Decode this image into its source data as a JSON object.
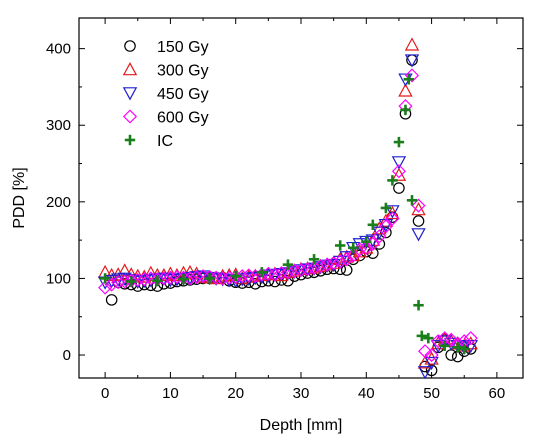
{
  "chart_data": {
    "type": "scatter",
    "title": "",
    "xlabel": "Depth [mm]",
    "ylabel": "PDD [%]",
    "xlim": [
      -4,
      64
    ],
    "ylim": [
      -30,
      440
    ],
    "xticks": [
      0,
      10,
      20,
      30,
      40,
      50,
      60
    ],
    "yticks": [
      0,
      100,
      200,
      300,
      400
    ],
    "grid": false,
    "legend_position": "top-left",
    "series": [
      {
        "name": "150 Gy",
        "marker": "circle",
        "color": "#000000",
        "points": [
          [
            1,
            72
          ],
          [
            2,
            95
          ],
          [
            3,
            93
          ],
          [
            4,
            92
          ],
          [
            5,
            90
          ],
          [
            6,
            92
          ],
          [
            7,
            91
          ],
          [
            8,
            90
          ],
          [
            9,
            93
          ],
          [
            10,
            94
          ],
          [
            11,
            96
          ],
          [
            12,
            97
          ],
          [
            13,
            98
          ],
          [
            14,
            99
          ],
          [
            15,
            100
          ],
          [
            16,
            100
          ],
          [
            17,
            101
          ],
          [
            18,
            101
          ],
          [
            19,
            97
          ],
          [
            20,
            95
          ],
          [
            21,
            94
          ],
          [
            22,
            95
          ],
          [
            23,
            93
          ],
          [
            24,
            96
          ],
          [
            25,
            97
          ],
          [
            26,
            96
          ],
          [
            27,
            98
          ],
          [
            28,
            97
          ],
          [
            29,
            103
          ],
          [
            30,
            105
          ],
          [
            31,
            107
          ],
          [
            32,
            108
          ],
          [
            33,
            110
          ],
          [
            34,
            112
          ],
          [
            35,
            113
          ],
          [
            36,
            112
          ],
          [
            37,
            111
          ],
          [
            38,
            125
          ],
          [
            39,
            130
          ],
          [
            40,
            135
          ],
          [
            41,
            133
          ],
          [
            42,
            145
          ],
          [
            43,
            160
          ],
          [
            44,
            180
          ],
          [
            45,
            218
          ],
          [
            46,
            315
          ],
          [
            47,
            385
          ],
          [
            48,
            175
          ],
          [
            49,
            -15
          ],
          [
            50,
            -20
          ],
          [
            51,
            10
          ],
          [
            52,
            20
          ],
          [
            53,
            0
          ],
          [
            54,
            -2
          ],
          [
            55,
            5
          ],
          [
            56,
            8
          ]
        ]
      },
      {
        "name": "300 Gy",
        "marker": "triangle-up",
        "color": "#e41a1c",
        "points": [
          [
            0,
            108
          ],
          [
            1,
            104
          ],
          [
            2,
            105
          ],
          [
            3,
            110
          ],
          [
            4,
            105
          ],
          [
            5,
            103
          ],
          [
            6,
            102
          ],
          [
            7,
            107
          ],
          [
            8,
            104
          ],
          [
            9,
            104
          ],
          [
            10,
            106
          ],
          [
            11,
            104
          ],
          [
            12,
            107
          ],
          [
            13,
            108
          ],
          [
            14,
            106
          ],
          [
            15,
            102
          ],
          [
            16,
            101
          ],
          [
            17,
            100
          ],
          [
            18,
            103
          ],
          [
            19,
            104
          ],
          [
            20,
            105
          ],
          [
            21,
            100
          ],
          [
            22,
            102
          ],
          [
            23,
            103
          ],
          [
            24,
            104
          ],
          [
            25,
            105
          ],
          [
            26,
            106
          ],
          [
            27,
            104
          ],
          [
            28,
            108
          ],
          [
            29,
            110
          ],
          [
            30,
            112
          ],
          [
            31,
            113
          ],
          [
            32,
            114
          ],
          [
            33,
            116
          ],
          [
            34,
            118
          ],
          [
            35,
            120
          ],
          [
            36,
            125
          ],
          [
            37,
            128
          ],
          [
            38,
            130
          ],
          [
            39,
            135
          ],
          [
            40,
            140
          ],
          [
            41,
            150
          ],
          [
            42,
            165
          ],
          [
            43,
            175
          ],
          [
            44,
            185
          ],
          [
            45,
            235
          ],
          [
            46,
            345
          ],
          [
            47,
            405
          ],
          [
            48,
            190
          ],
          [
            49,
            -10
          ],
          [
            50,
            -5
          ],
          [
            51,
            15
          ],
          [
            52,
            20
          ],
          [
            53,
            18
          ],
          [
            54,
            15
          ],
          [
            55,
            12
          ],
          [
            56,
            15
          ]
        ]
      },
      {
        "name": "450 Gy",
        "marker": "triangle-down",
        "color": "#1f1fd0",
        "points": [
          [
            0,
            95
          ],
          [
            1,
            97
          ],
          [
            2,
            99
          ],
          [
            3,
            100
          ],
          [
            4,
            98
          ],
          [
            5,
            96
          ],
          [
            6,
            97
          ],
          [
            7,
            98
          ],
          [
            8,
            99
          ],
          [
            9,
            100
          ],
          [
            10,
            98
          ],
          [
            11,
            99
          ],
          [
            12,
            100
          ],
          [
            13,
            101
          ],
          [
            14,
            102
          ],
          [
            15,
            103
          ],
          [
            16,
            101
          ],
          [
            17,
            100
          ],
          [
            18,
            99
          ],
          [
            19,
            98
          ],
          [
            20,
            97
          ],
          [
            21,
            99
          ],
          [
            22,
            100
          ],
          [
            23,
            101
          ],
          [
            24,
            102
          ],
          [
            25,
            104
          ],
          [
            26,
            105
          ],
          [
            27,
            106
          ],
          [
            28,
            107
          ],
          [
            29,
            109
          ],
          [
            30,
            111
          ],
          [
            31,
            112
          ],
          [
            32,
            113
          ],
          [
            33,
            115
          ],
          [
            34,
            117
          ],
          [
            35,
            118
          ],
          [
            36,
            122
          ],
          [
            37,
            128
          ],
          [
            38,
            140
          ],
          [
            39,
            145
          ],
          [
            40,
            148
          ],
          [
            41,
            150
          ],
          [
            42,
            160
          ],
          [
            43,
            170
          ],
          [
            44,
            188
          ],
          [
            45,
            252
          ],
          [
            46,
            360
          ],
          [
            47,
            385
          ],
          [
            48,
            158
          ],
          [
            49,
            -22
          ],
          [
            50,
            -10
          ],
          [
            51,
            12
          ],
          [
            52,
            18
          ],
          [
            53,
            15
          ],
          [
            54,
            12
          ],
          [
            55,
            10
          ],
          [
            56,
            12
          ]
        ]
      },
      {
        "name": "600 Gy",
        "marker": "diamond",
        "color": "#ff00ff",
        "points": [
          [
            0,
            88
          ],
          [
            1,
            92
          ],
          [
            2,
            95
          ],
          [
            3,
            96
          ],
          [
            4,
            97
          ],
          [
            5,
            98
          ],
          [
            6,
            99
          ],
          [
            7,
            100
          ],
          [
            8,
            99
          ],
          [
            9,
            100
          ],
          [
            10,
            101
          ],
          [
            11,
            102
          ],
          [
            12,
            101
          ],
          [
            13,
            100
          ],
          [
            14,
            102
          ],
          [
            15,
            103
          ],
          [
            16,
            102
          ],
          [
            17,
            101
          ],
          [
            18,
            100
          ],
          [
            19,
            101
          ],
          [
            20,
            102
          ],
          [
            21,
            103
          ],
          [
            22,
            104
          ],
          [
            23,
            103
          ],
          [
            24,
            105
          ],
          [
            25,
            106
          ],
          [
            26,
            105
          ],
          [
            27,
            107
          ],
          [
            28,
            108
          ],
          [
            29,
            110
          ],
          [
            30,
            111
          ],
          [
            31,
            112
          ],
          [
            32,
            114
          ],
          [
            33,
            116
          ],
          [
            34,
            118
          ],
          [
            35,
            120
          ],
          [
            36,
            122
          ],
          [
            37,
            125
          ],
          [
            38,
            130
          ],
          [
            39,
            138
          ],
          [
            40,
            140
          ],
          [
            41,
            145
          ],
          [
            42,
            155
          ],
          [
            43,
            168
          ],
          [
            44,
            178
          ],
          [
            45,
            240
          ],
          [
            46,
            325
          ],
          [
            47,
            365
          ],
          [
            48,
            195
          ],
          [
            49,
            5
          ],
          [
            50,
            0
          ],
          [
            51,
            18
          ],
          [
            52,
            22
          ],
          [
            53,
            20
          ],
          [
            54,
            15
          ],
          [
            55,
            18
          ],
          [
            56,
            22
          ]
        ]
      },
      {
        "name": "IC",
        "marker": "plus",
        "color": "#1a7f1a",
        "points": [
          [
            0,
            100
          ],
          [
            4,
            96
          ],
          [
            8,
            97
          ],
          [
            12,
            99
          ],
          [
            16,
            100
          ],
          [
            20,
            103
          ],
          [
            24,
            108
          ],
          [
            28,
            118
          ],
          [
            32,
            125
          ],
          [
            36,
            143
          ],
          [
            38,
            140
          ],
          [
            40,
            148
          ],
          [
            41,
            170
          ],
          [
            43,
            192
          ],
          [
            44,
            228
          ],
          [
            45,
            278
          ],
          [
            46,
            320
          ],
          [
            46.5,
            360
          ],
          [
            47,
            202
          ],
          [
            48,
            65
          ],
          [
            48.5,
            25
          ],
          [
            49.5,
            22
          ],
          [
            52,
            12
          ],
          [
            54,
            10
          ],
          [
            55,
            8
          ]
        ]
      }
    ]
  }
}
